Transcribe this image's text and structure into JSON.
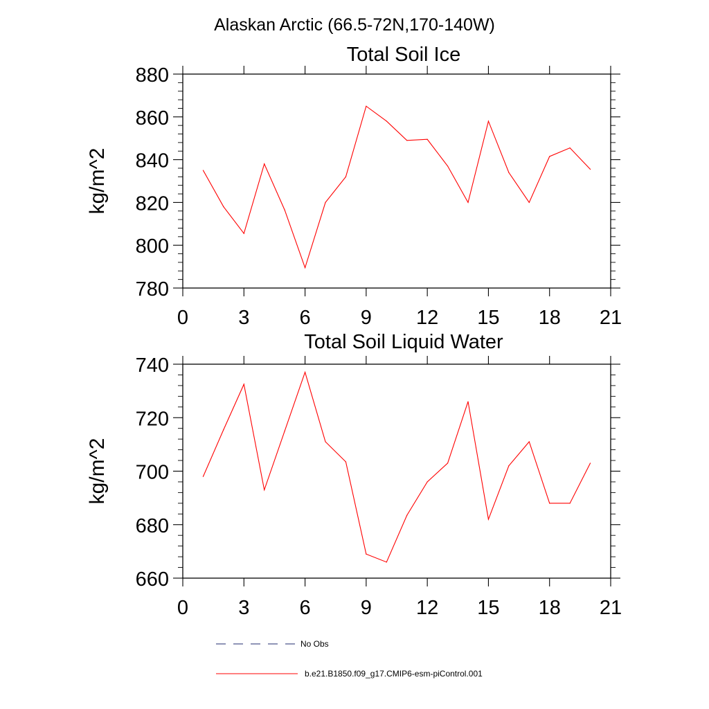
{
  "figure": {
    "main_title": "Alaskan Arctic (66.5-72N,170-140W)"
  },
  "colors": {
    "model_line": "#ff0000",
    "obs_line": "#1f2a6e",
    "axis": "#000000"
  },
  "legend": {
    "obs_label": "No Obs",
    "model_label": "b.e21.B1850.f09_g17.CMIP6-esm-piControl.001"
  },
  "chart_data": [
    {
      "type": "line",
      "title": "Total Soil Ice",
      "xlabel": "",
      "ylabel": "kg/m^2",
      "xlim": [
        0,
        21
      ],
      "ylim": [
        780,
        880
      ],
      "xticks": [
        0,
        3,
        6,
        9,
        12,
        15,
        18,
        21
      ],
      "yticks": [
        780,
        800,
        820,
        840,
        860,
        880
      ],
      "x": [
        1,
        2,
        3,
        4,
        5,
        6,
        7,
        8,
        9,
        10,
        11,
        12,
        13,
        14,
        15,
        16,
        17,
        18,
        19,
        20
      ],
      "series": [
        {
          "name": "b.e21.B1850.f09_g17.CMIP6-esm-piControl.001",
          "values": [
            835,
            818,
            805.5,
            838,
            816.5,
            789.5,
            820,
            832,
            865,
            858,
            849,
            849.5,
            837,
            820,
            858,
            834,
            820,
            841.5,
            845.5,
            835.5
          ]
        }
      ]
    },
    {
      "type": "line",
      "title": "Total Soil Liquid Water",
      "xlabel": "",
      "ylabel": "kg/m^2",
      "xlim": [
        0,
        21
      ],
      "ylim": [
        660,
        740
      ],
      "xticks": [
        0,
        3,
        6,
        9,
        12,
        15,
        18,
        21
      ],
      "yticks": [
        660,
        680,
        700,
        720,
        740
      ],
      "x": [
        1,
        2,
        3,
        4,
        5,
        6,
        7,
        8,
        9,
        10,
        11,
        12,
        13,
        14,
        15,
        16,
        17,
        18,
        19,
        20
      ],
      "series": [
        {
          "name": "b.e21.B1850.f09_g17.CMIP6-esm-piControl.001",
          "values": [
            698,
            715.5,
            732.5,
            693,
            715,
            737,
            711,
            703.5,
            669,
            666,
            683.5,
            696,
            703,
            726,
            682,
            702,
            711,
            688,
            688,
            703
          ]
        }
      ]
    }
  ]
}
